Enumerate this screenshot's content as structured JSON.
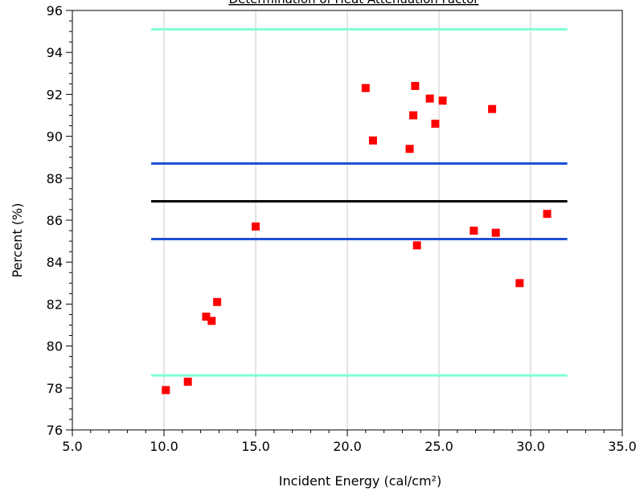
{
  "chart_data": {
    "type": "scatter",
    "title": "Determination of Heat Attenuation Factor",
    "xlabel": "Incident Energy (cal/cm²)",
    "ylabel": "Percent (%)",
    "xlim": [
      5.0,
      35.0
    ],
    "ylim": [
      76,
      96
    ],
    "x_ticks": [
      5.0,
      10.0,
      15.0,
      20.0,
      25.0,
      30.0,
      35.0
    ],
    "x_tick_labels": [
      "5.0",
      "10.0",
      "15.0",
      "20.0",
      "25.0",
      "30.0",
      "35.0"
    ],
    "y_ticks": [
      76,
      78,
      80,
      82,
      84,
      86,
      88,
      90,
      92,
      94,
      96
    ],
    "y_tick_labels": [
      "76",
      "78",
      "80",
      "82",
      "84",
      "86",
      "88",
      "90",
      "92",
      "94",
      "96"
    ],
    "grid": "vertical",
    "reference_lines": [
      {
        "y": 95.1,
        "x_range": [
          9.3,
          32.0
        ],
        "color": "#7fffd4"
      },
      {
        "y": 88.7,
        "x_range": [
          9.3,
          32.0
        ],
        "color": "#1e4fd6"
      },
      {
        "y": 86.9,
        "x_range": [
          9.3,
          32.0
        ],
        "color": "#000000"
      },
      {
        "y": 85.1,
        "x_range": [
          9.3,
          32.0
        ],
        "color": "#1e4fd6"
      },
      {
        "y": 78.6,
        "x_range": [
          9.3,
          32.0
        ],
        "color": "#7fffd4"
      }
    ],
    "points_color": "#ff0000",
    "points": [
      {
        "x": 10.1,
        "y": 77.9
      },
      {
        "x": 11.3,
        "y": 78.3
      },
      {
        "x": 12.3,
        "y": 81.4
      },
      {
        "x": 12.6,
        "y": 81.2
      },
      {
        "x": 12.9,
        "y": 82.1
      },
      {
        "x": 15.0,
        "y": 85.7
      },
      {
        "x": 21.0,
        "y": 92.3
      },
      {
        "x": 21.4,
        "y": 89.8
      },
      {
        "x": 23.4,
        "y": 89.4
      },
      {
        "x": 23.6,
        "y": 91.0
      },
      {
        "x": 23.7,
        "y": 92.4
      },
      {
        "x": 23.8,
        "y": 84.8
      },
      {
        "x": 24.5,
        "y": 91.8
      },
      {
        "x": 24.8,
        "y": 90.6
      },
      {
        "x": 25.2,
        "y": 91.7
      },
      {
        "x": 26.9,
        "y": 85.5
      },
      {
        "x": 27.9,
        "y": 91.3
      },
      {
        "x": 28.1,
        "y": 85.4
      },
      {
        "x": 29.4,
        "y": 83.0
      },
      {
        "x": 30.9,
        "y": 86.3
      }
    ]
  }
}
